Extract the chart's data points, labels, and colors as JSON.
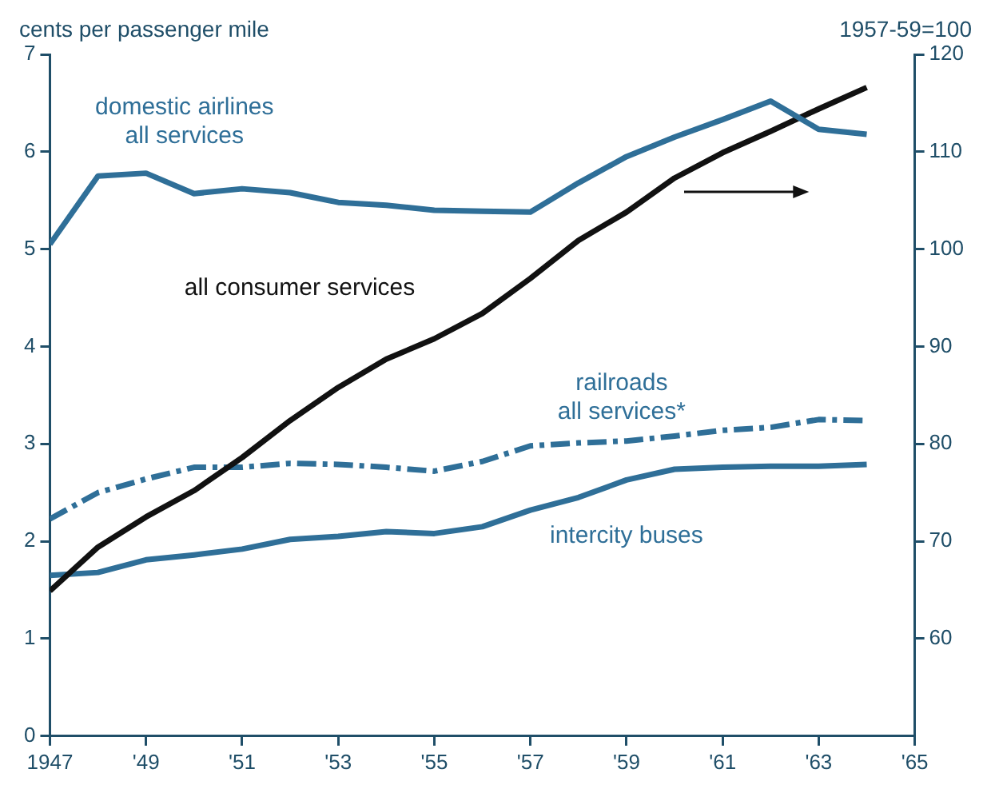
{
  "chart_data": {
    "type": "line",
    "ylabel": "cents per passenger mile",
    "y2label": "1957-59=100",
    "x": [
      1947,
      1948,
      1949,
      1950,
      1951,
      1952,
      1953,
      1954,
      1955,
      1956,
      1957,
      1958,
      1959,
      1960,
      1961,
      1962,
      1963,
      1964
    ],
    "xlim": [
      1947,
      1965
    ],
    "xticks": [
      1947,
      {
        "value": 1949,
        "label": "'49"
      },
      {
        "value": 1951,
        "label": "'51"
      },
      {
        "value": 1953,
        "label": "'53"
      },
      {
        "value": 1955,
        "label": "'55"
      },
      {
        "value": 1957,
        "label": "'57"
      },
      {
        "value": 1959,
        "label": "'59"
      },
      {
        "value": 1961,
        "label": "'61"
      },
      {
        "value": 1963,
        "label": "'63"
      },
      {
        "value": 1965,
        "label": "'65"
      }
    ],
    "ylim": [
      0,
      7
    ],
    "yticks": [
      0,
      1,
      2,
      3,
      4,
      5,
      6,
      7
    ],
    "y2lim": [
      50,
      120
    ],
    "y2ticks": [
      60,
      70,
      80,
      90,
      100,
      110,
      120
    ],
    "grid": false,
    "legend": false,
    "marker": "none",
    "series": [
      {
        "name": "domestic airlines all services",
        "color": "#2f6f98",
        "line_style": "solid",
        "values": [
          5.05,
          5.75,
          5.78,
          5.57,
          5.62,
          5.58,
          5.48,
          5.45,
          5.4,
          5.39,
          5.38,
          5.68,
          5.95,
          6.15,
          6.33,
          6.52,
          6.23,
          6.18
        ]
      },
      {
        "name": "all consumer services",
        "color": "#111111",
        "axis": "y2",
        "line_style": "solid",
        "values": [
          64.9,
          69.4,
          72.5,
          75.2,
          78.6,
          82.4,
          85.8,
          88.7,
          90.8,
          93.4,
          97.0,
          100.9,
          103.8,
          107.3,
          109.9,
          112.1,
          114.4,
          116.6
        ]
      },
      {
        "name": "railroads all services*",
        "color": "#2f6f98",
        "line_style": "dashed",
        "values": [
          2.23,
          2.5,
          2.64,
          2.76,
          2.76,
          2.8,
          2.79,
          2.76,
          2.72,
          2.82,
          2.98,
          3.01,
          3.03,
          3.08,
          3.14,
          3.17,
          3.25,
          3.24
        ]
      },
      {
        "name": "intercity buses",
        "color": "#2f6f98",
        "line_style": "solid",
        "values": [
          1.65,
          1.68,
          1.81,
          1.86,
          1.92,
          2.02,
          2.05,
          2.1,
          2.08,
          2.15,
          2.32,
          2.45,
          2.63,
          2.74,
          2.76,
          2.77,
          2.77,
          2.79
        ]
      }
    ]
  }
}
